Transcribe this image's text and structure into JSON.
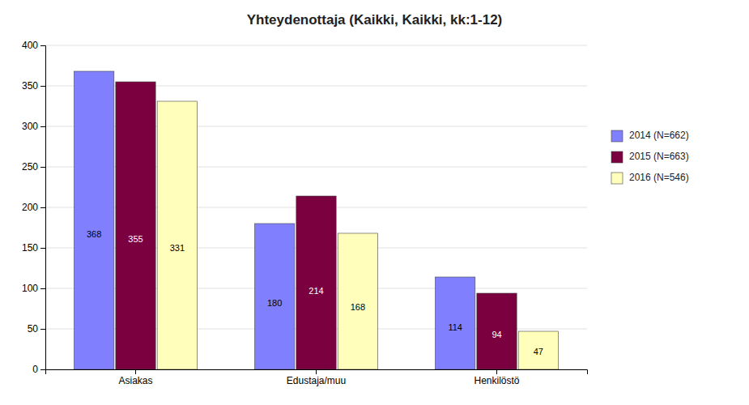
{
  "chart_data": {
    "type": "bar",
    "title": "Yhteydenottaja (Kaikki, Kaikki, kk:1-12)",
    "categories": [
      "Asiakas",
      "Edustaja/muu",
      "Henkilöstö"
    ],
    "series": [
      {
        "name": "2014 (N=662)",
        "values": [
          368,
          180,
          114
        ],
        "color": "#8080ff"
      },
      {
        "name": "2015 (N=663)",
        "values": [
          355,
          214,
          94
        ],
        "color": "#7b0040"
      },
      {
        "name": "2016 (N=546)",
        "values": [
          331,
          168,
          47
        ],
        "color": "#ffffbb"
      }
    ],
    "ylim": [
      0,
      400
    ],
    "yticks": [
      0,
      50,
      100,
      150,
      200,
      250,
      300,
      350,
      400
    ],
    "grid": true,
    "legend": "right",
    "data_labels": true
  }
}
